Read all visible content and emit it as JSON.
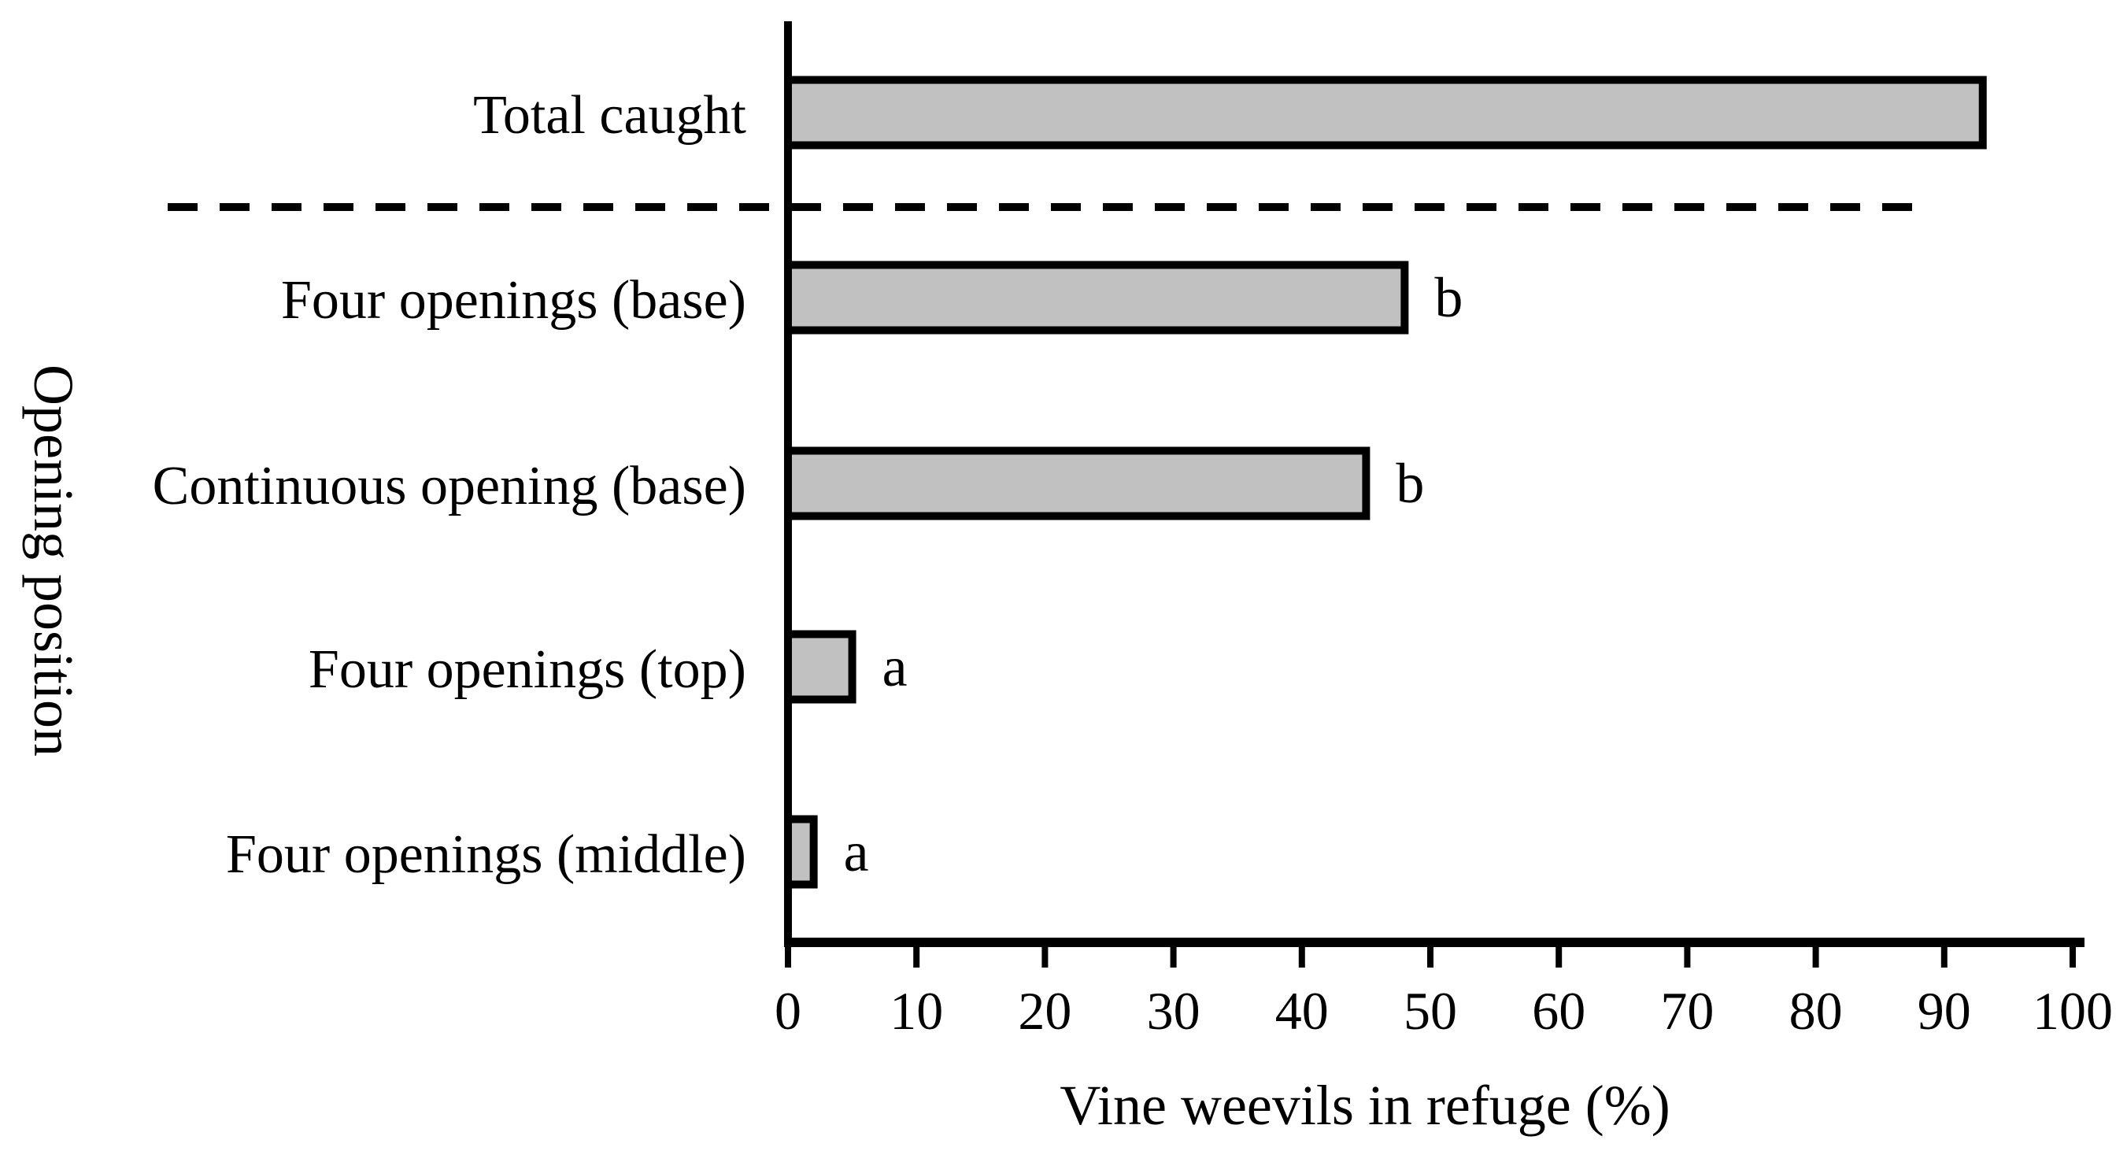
{
  "chart_data": {
    "type": "bar",
    "orientation": "horizontal",
    "title": "",
    "xlabel": "Vine weevils in refuge (%)",
    "ylabel": "Opening position",
    "xlim": [
      0,
      100
    ],
    "xticks": [
      0,
      10,
      20,
      30,
      40,
      50,
      60,
      70,
      80,
      90,
      100
    ],
    "categories": [
      "Total caught",
      "Four openings (base)",
      "Continuous opening (base)",
      "Four openings (top)",
      "Four openings (middle)"
    ],
    "values": [
      93,
      48,
      45,
      5,
      2
    ],
    "sig_letters": [
      "",
      "b",
      "b",
      "a",
      "a"
    ],
    "separator_note": "dashed line separates Total caught from treatment bars",
    "bar_fill": "#c1c1c1",
    "bar_stroke": "#000000",
    "axis_color": "#000000",
    "grid": "off",
    "legend": "none"
  }
}
